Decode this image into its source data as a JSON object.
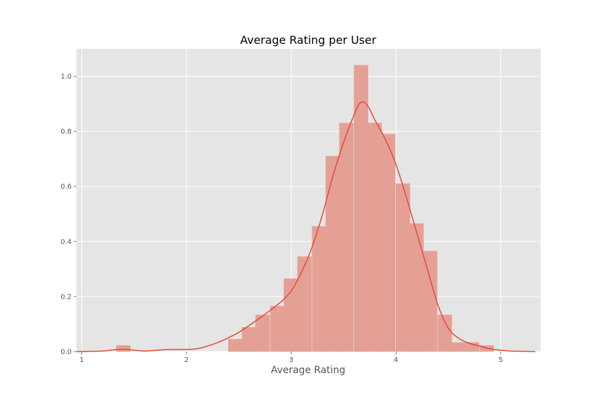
{
  "chart_data": {
    "type": "bar",
    "title": "Average Rating per User",
    "xlabel": "Average Rating",
    "ylabel": "",
    "xlim": [
      0.95,
      5.38
    ],
    "ylim": [
      0.0,
      1.1
    ],
    "x_ticks": [
      1,
      2,
      3,
      4,
      5
    ],
    "x_tick_labels": [
      "1",
      "2",
      "3",
      "4",
      "5"
    ],
    "y_ticks": [
      0.0,
      0.2,
      0.4,
      0.6,
      0.8,
      1.0
    ],
    "y_tick_labels": [
      "0.0",
      "0.2",
      "0.4",
      "0.6",
      "0.8",
      "1.0"
    ],
    "grid": true,
    "colors": {
      "background": "#e5e5e5",
      "grid": "#ffffff",
      "bars": "#e5a096",
      "kde": "#e24a33"
    },
    "histogram": {
      "bin_width": 0.133,
      "bins": [
        {
          "left": 1.33,
          "value": 0.022
        },
        {
          "left": 2.4,
          "value": 0.045
        },
        {
          "left": 2.53,
          "value": 0.088
        },
        {
          "left": 2.66,
          "value": 0.133
        },
        {
          "left": 2.8,
          "value": 0.165
        },
        {
          "left": 2.93,
          "value": 0.265
        },
        {
          "left": 3.06,
          "value": 0.345
        },
        {
          "left": 3.2,
          "value": 0.455
        },
        {
          "left": 3.33,
          "value": 0.71
        },
        {
          "left": 3.46,
          "value": 0.83
        },
        {
          "left": 3.6,
          "value": 1.04
        },
        {
          "left": 3.73,
          "value": 0.83
        },
        {
          "left": 3.86,
          "value": 0.79
        },
        {
          "left": 4.0,
          "value": 0.61
        },
        {
          "left": 4.13,
          "value": 0.465
        },
        {
          "left": 4.26,
          "value": 0.365
        },
        {
          "left": 4.4,
          "value": 0.133
        },
        {
          "left": 4.53,
          "value": 0.033
        },
        {
          "left": 4.66,
          "value": 0.033
        },
        {
          "left": 4.8,
          "value": 0.022
        }
      ]
    },
    "kde": {
      "x": [
        0.95,
        1.2,
        1.35,
        1.45,
        1.6,
        1.8,
        2.0,
        2.1,
        2.2,
        2.3,
        2.4,
        2.5,
        2.6,
        2.7,
        2.8,
        2.9,
        3.0,
        3.1,
        3.2,
        3.3,
        3.4,
        3.5,
        3.6,
        3.65,
        3.7,
        3.75,
        3.8,
        3.9,
        4.0,
        4.1,
        4.2,
        4.3,
        4.4,
        4.5,
        4.6,
        4.7,
        4.8,
        4.9,
        5.0,
        5.1,
        5.2,
        5.33
      ],
      "y": [
        0.0,
        0.002,
        0.008,
        0.007,
        0.002,
        0.007,
        0.008,
        0.01,
        0.02,
        0.033,
        0.05,
        0.07,
        0.095,
        0.122,
        0.15,
        0.18,
        0.22,
        0.29,
        0.38,
        0.5,
        0.64,
        0.76,
        0.86,
        0.9,
        0.905,
        0.88,
        0.84,
        0.77,
        0.68,
        0.56,
        0.43,
        0.3,
        0.17,
        0.085,
        0.048,
        0.03,
        0.02,
        0.01,
        0.005,
        0.002,
        0.001,
        0.0
      ]
    }
  }
}
